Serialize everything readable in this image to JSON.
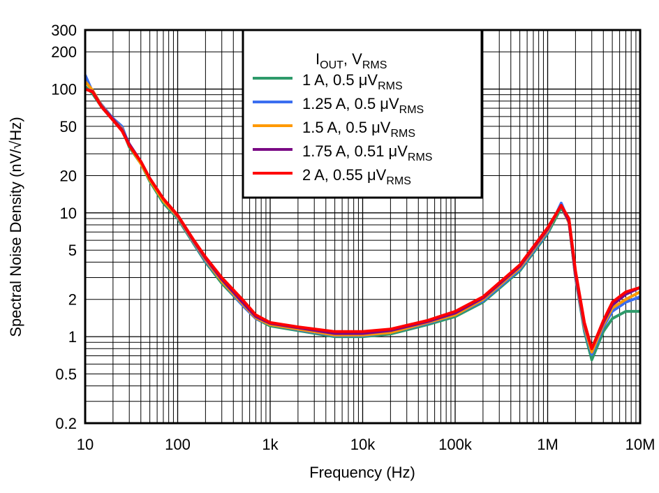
{
  "chart_data": {
    "type": "line",
    "title": "",
    "xlabel": "Frequency (Hz)",
    "ylabel": "Spectral Noise Density (nV/√Hz)",
    "xscale": "log",
    "yscale": "log",
    "xlim": [
      10,
      10000000
    ],
    "ylim": [
      0.2,
      300
    ],
    "grid": true,
    "legend_placement": "top-center",
    "x_ticks": [
      {
        "value": 10,
        "label": "10"
      },
      {
        "value": 100,
        "label": "100"
      },
      {
        "value": 1000,
        "label": "1k"
      },
      {
        "value": 10000,
        "label": "10k"
      },
      {
        "value": 100000,
        "label": "100k"
      },
      {
        "value": 1000000,
        "label": "1M"
      },
      {
        "value": 10000000,
        "label": "10M"
      }
    ],
    "y_ticks": [
      {
        "value": 0.2,
        "label": "0.2"
      },
      {
        "value": 0.5,
        "label": "0.5"
      },
      {
        "value": 1,
        "label": "1"
      },
      {
        "value": 2,
        "label": "2"
      },
      {
        "value": 5,
        "label": "5"
      },
      {
        "value": 10,
        "label": "10"
      },
      {
        "value": 20,
        "label": "20"
      },
      {
        "value": 50,
        "label": "50"
      },
      {
        "value": 100,
        "label": "100"
      },
      {
        "value": 200,
        "label": "200"
      },
      {
        "value": 300,
        "label": "300"
      }
    ],
    "legend_title": {
      "main": "I",
      "sub1": "OUT",
      "mid": ", V",
      "sub2": "RMS"
    },
    "x": [
      10,
      12,
      15,
      20,
      25,
      30,
      40,
      50,
      70,
      100,
      150,
      200,
      300,
      500,
      700,
      1000,
      2000,
      5000,
      10000,
      20000,
      50000,
      100000,
      200000,
      500000,
      1000000,
      1400000,
      1700000,
      2000000,
      2500000,
      3000000,
      4000000,
      5000000,
      7000000,
      10000000
    ],
    "series": [
      {
        "name": "1 A, 0.5 μV",
        "name_sub": "RMS",
        "color": "#2e9a6a",
        "values": [
          105,
          92,
          72,
          56,
          48,
          34,
          25,
          18,
          12,
          9,
          5.6,
          4.0,
          2.7,
          1.8,
          1.4,
          1.22,
          1.12,
          1.0,
          1.0,
          1.05,
          1.25,
          1.45,
          1.9,
          3.4,
          6.8,
          11,
          8.5,
          3.0,
          1.1,
          0.65,
          1.1,
          1.4,
          1.6,
          1.6
        ]
      },
      {
        "name": "1.25 A, 0.5 μV",
        "name_sub": "RMS",
        "color": "#3b6ef0",
        "values": [
          130,
          95,
          75,
          58,
          50,
          35,
          26,
          19,
          12.5,
          9.2,
          5.7,
          4.1,
          2.8,
          1.8,
          1.4,
          1.25,
          1.14,
          1.02,
          1.02,
          1.08,
          1.28,
          1.5,
          1.95,
          3.5,
          7,
          12,
          8.5,
          3.0,
          1.15,
          0.72,
          1.2,
          1.6,
          1.9,
          2.1
        ]
      },
      {
        "name": "1.5 A, 0.5 μV",
        "name_sub": "RMS",
        "color": "#ff9900",
        "values": [
          115,
          98,
          74,
          57,
          48,
          35,
          25,
          18.5,
          12.5,
          9.3,
          5.8,
          4.2,
          2.8,
          1.85,
          1.42,
          1.25,
          1.15,
          1.03,
          1.03,
          1.08,
          1.3,
          1.5,
          2.0,
          3.6,
          7.2,
          11.5,
          8.3,
          3.1,
          1.2,
          0.75,
          1.25,
          1.7,
          2.0,
          2.3
        ]
      },
      {
        "name": "1.75 A, 0.51 μV",
        "name_sub": "RMS",
        "color": "#7a0a84",
        "values": [
          100,
          96,
          73,
          57,
          47,
          36,
          26,
          19,
          13,
          9.5,
          5.9,
          4.3,
          2.9,
          1.9,
          1.45,
          1.28,
          1.18,
          1.06,
          1.06,
          1.12,
          1.32,
          1.55,
          2.05,
          3.7,
          7.4,
          11.5,
          8.5,
          3.2,
          1.25,
          0.8,
          1.3,
          1.8,
          2.2,
          2.5
        ]
      },
      {
        "name": "2 A, 0.55 μV",
        "name_sub": "RMS",
        "color": "#ff0000",
        "values": [
          100,
          95,
          72,
          56,
          46,
          35,
          26,
          19,
          13,
          9.6,
          6.0,
          4.4,
          3.0,
          2.0,
          1.5,
          1.3,
          1.2,
          1.1,
          1.1,
          1.15,
          1.35,
          1.6,
          2.1,
          3.8,
          7.6,
          11.5,
          9.0,
          3.4,
          1.3,
          0.8,
          1.35,
          1.9,
          2.3,
          2.5
        ]
      }
    ]
  }
}
